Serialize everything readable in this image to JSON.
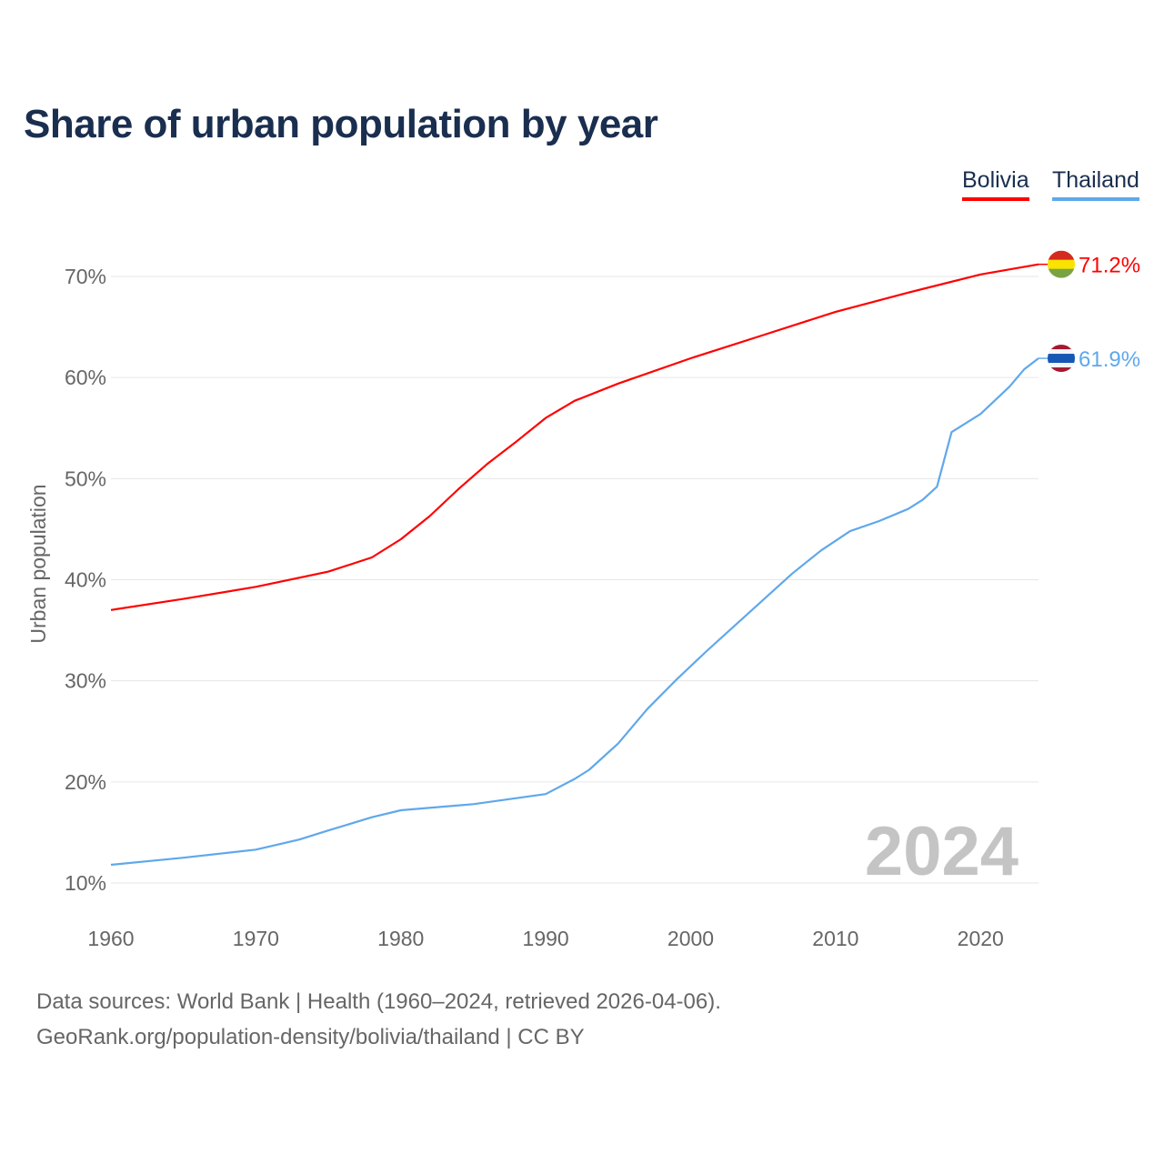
{
  "title": "Share of urban population by year",
  "footer": {
    "sources": "Data sources: World Bank | Health (1960–2024, retrieved 2026-04-06).",
    "credit": "GeoRank.org/population-density/bolivia/thailand | CC BY"
  },
  "chart_data": {
    "type": "line",
    "title": "Share of urban population by year",
    "xlabel": "",
    "ylabel": "Urban population",
    "xlim": [
      1960,
      2024
    ],
    "ylim": [
      10,
      70
    ],
    "x_ticks": [
      1960,
      1970,
      1980,
      1990,
      2000,
      2010,
      2020
    ],
    "x_tick_labels": [
      "1960",
      "1970",
      "1980",
      "1990",
      "2000",
      "2010",
      "2020"
    ],
    "y_ticks": [
      10,
      20,
      30,
      40,
      50,
      60,
      70
    ],
    "y_tick_labels": [
      "10%",
      "20%",
      "30%",
      "40%",
      "50%",
      "60%",
      "70%"
    ],
    "grid": true,
    "legend_placement": "top-right",
    "year_watermark": "2024",
    "series": [
      {
        "name": "Bolivia",
        "color": "#ff0000",
        "end_label": "71.2%",
        "flag": [
          "#d52b1e",
          "#f9e300",
          "#79a342"
        ],
        "points": [
          [
            1960,
            37.0
          ],
          [
            1965,
            38.1
          ],
          [
            1970,
            39.3
          ],
          [
            1975,
            40.8
          ],
          [
            1978,
            42.2
          ],
          [
            1980,
            44.0
          ],
          [
            1982,
            46.3
          ],
          [
            1984,
            49.0
          ],
          [
            1986,
            51.5
          ],
          [
            1988,
            53.7
          ],
          [
            1990,
            56.0
          ],
          [
            1992,
            57.7
          ],
          [
            1995,
            59.4
          ],
          [
            2000,
            61.9
          ],
          [
            2005,
            64.2
          ],
          [
            2010,
            66.5
          ],
          [
            2015,
            68.4
          ],
          [
            2020,
            70.2
          ],
          [
            2024,
            71.2
          ]
        ]
      },
      {
        "name": "Thailand",
        "color": "#5fa8eb",
        "end_label": "61.9%",
        "flag": [
          "#a51931",
          "#f4f5f8",
          "#2d2a4a"
        ],
        "points": [
          [
            1960,
            11.8
          ],
          [
            1965,
            12.5
          ],
          [
            1970,
            13.3
          ],
          [
            1973,
            14.3
          ],
          [
            1975,
            15.2
          ],
          [
            1978,
            16.5
          ],
          [
            1980,
            17.2
          ],
          [
            1985,
            17.8
          ],
          [
            1990,
            18.8
          ],
          [
            1992,
            20.3
          ],
          [
            1993,
            21.2
          ],
          [
            1995,
            23.8
          ],
          [
            1997,
            27.2
          ],
          [
            1999,
            30.1
          ],
          [
            2001,
            32.8
          ],
          [
            2003,
            35.4
          ],
          [
            2005,
            38.0
          ],
          [
            2007,
            40.6
          ],
          [
            2009,
            42.9
          ],
          [
            2011,
            44.8
          ],
          [
            2013,
            45.8
          ],
          [
            2015,
            47.0
          ],
          [
            2016,
            47.9
          ],
          [
            2017,
            49.2
          ],
          [
            2018,
            54.6
          ],
          [
            2020,
            56.4
          ],
          [
            2022,
            59.1
          ],
          [
            2023,
            60.8
          ],
          [
            2024,
            61.9
          ]
        ]
      }
    ]
  }
}
